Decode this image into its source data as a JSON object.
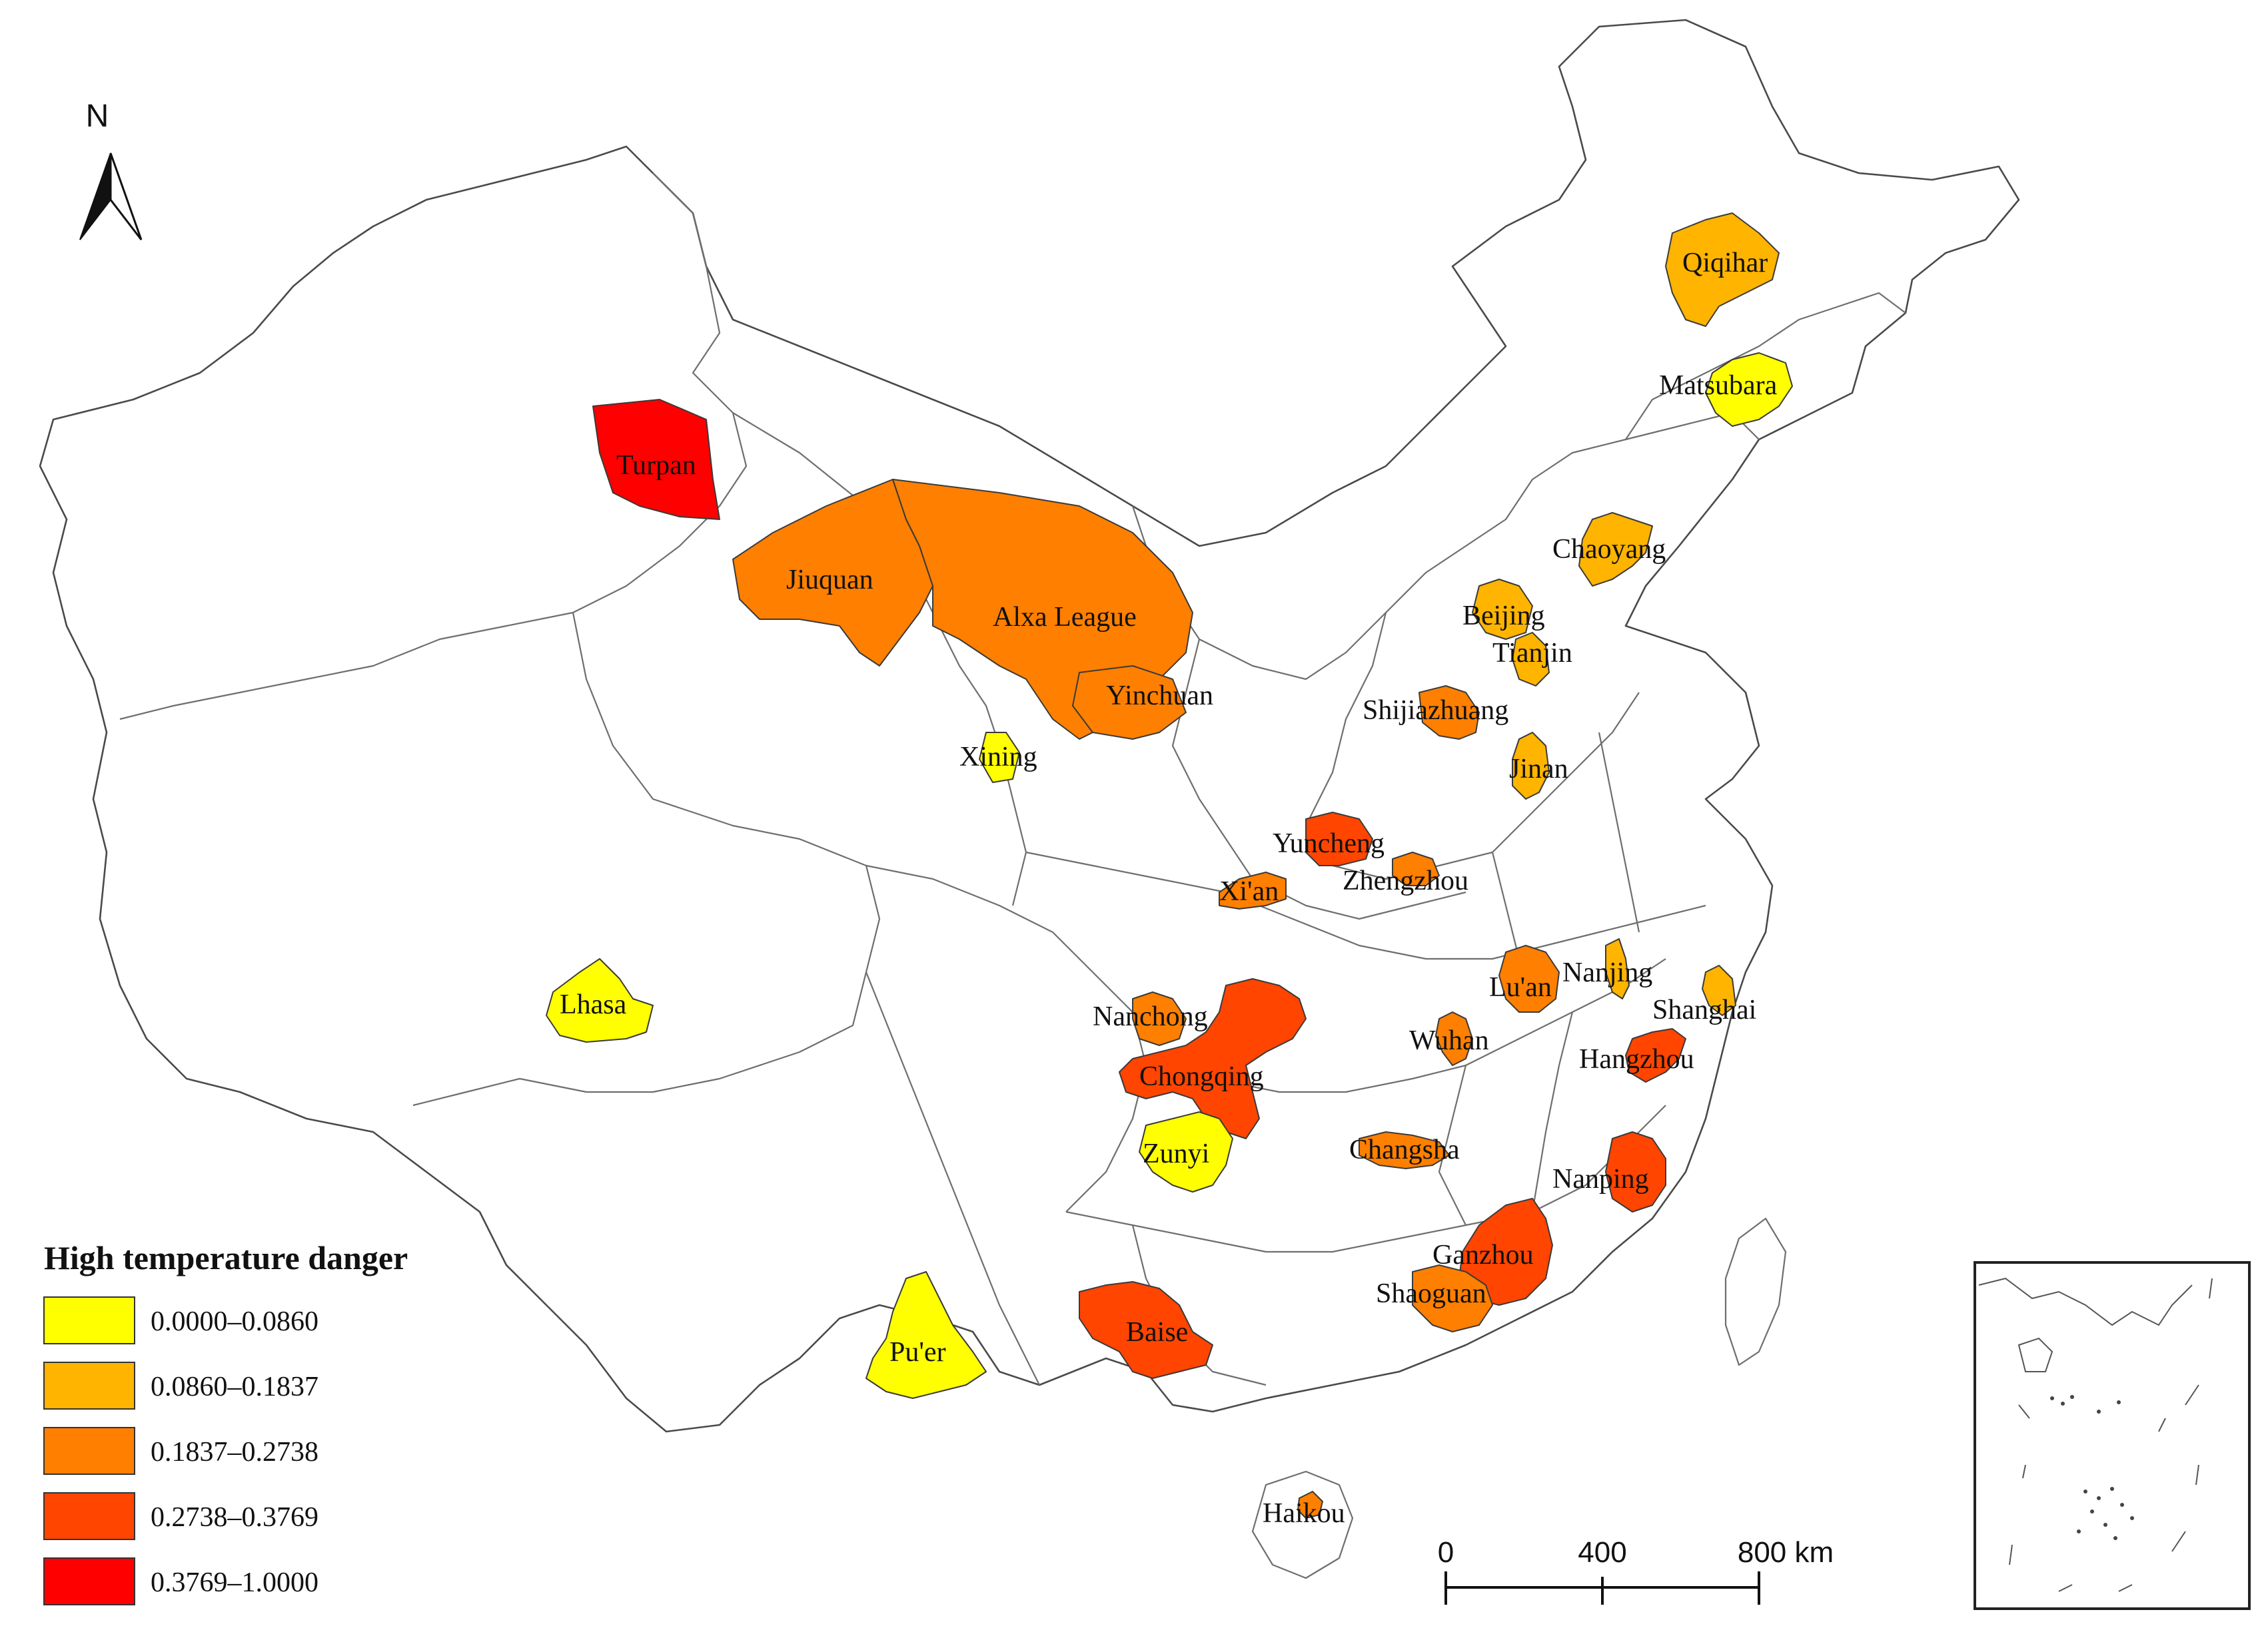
{
  "north_arrow": {
    "label": "N"
  },
  "legend": {
    "title": "High temperature danger",
    "classes": [
      {
        "range": "0.0000–0.0860",
        "color": "#ffff00"
      },
      {
        "range": "0.0860–0.1837",
        "color": "#ffb400"
      },
      {
        "range": "0.1837–0.2738",
        "color": "#ff7f00"
      },
      {
        "range": "0.2738–0.3769",
        "color": "#ff4500"
      },
      {
        "range": "0.3769–1.0000",
        "color": "#ff0000"
      }
    ]
  },
  "scale_bar": {
    "labels": [
      "0",
      "400",
      "800 km"
    ]
  },
  "cities": [
    {
      "name": "Turpan",
      "class": 4
    },
    {
      "name": "Jiuquan",
      "class": 2
    },
    {
      "name": "Alxa League",
      "class": 2
    },
    {
      "name": "Yinchuan",
      "class": 2
    },
    {
      "name": "Xining",
      "class": 0
    },
    {
      "name": "Lhasa",
      "class": 0
    },
    {
      "name": "Qiqihar",
      "class": 1
    },
    {
      "name": "Matsubara",
      "class": 0
    },
    {
      "name": "Chaoyang",
      "class": 1
    },
    {
      "name": "Beijing",
      "class": 1
    },
    {
      "name": "Tianjin",
      "class": 1
    },
    {
      "name": "Shijiazhuang",
      "class": 2
    },
    {
      "name": "Jinan",
      "class": 1
    },
    {
      "name": "Yuncheng",
      "class": 3
    },
    {
      "name": "Zhengzhou",
      "class": 2
    },
    {
      "name": "Xi'an",
      "class": 2
    },
    {
      "name": "Nanchong",
      "class": 2
    },
    {
      "name": "Chongqing",
      "class": 3
    },
    {
      "name": "Zunyi",
      "class": 0
    },
    {
      "name": "Lu'an",
      "class": 2
    },
    {
      "name": "Nanjing",
      "class": 1
    },
    {
      "name": "Shanghai",
      "class": 1
    },
    {
      "name": "Wuhan",
      "class": 2
    },
    {
      "name": "Hangzhou",
      "class": 3
    },
    {
      "name": "Changsha",
      "class": 2
    },
    {
      "name": "Nanping",
      "class": 3
    },
    {
      "name": "Ganzhou",
      "class": 3
    },
    {
      "name": "Shaoguan",
      "class": 2
    },
    {
      "name": "Baise",
      "class": 3
    },
    {
      "name": "Pu'er",
      "class": 0
    },
    {
      "name": "Haikou",
      "class": 2
    }
  ]
}
